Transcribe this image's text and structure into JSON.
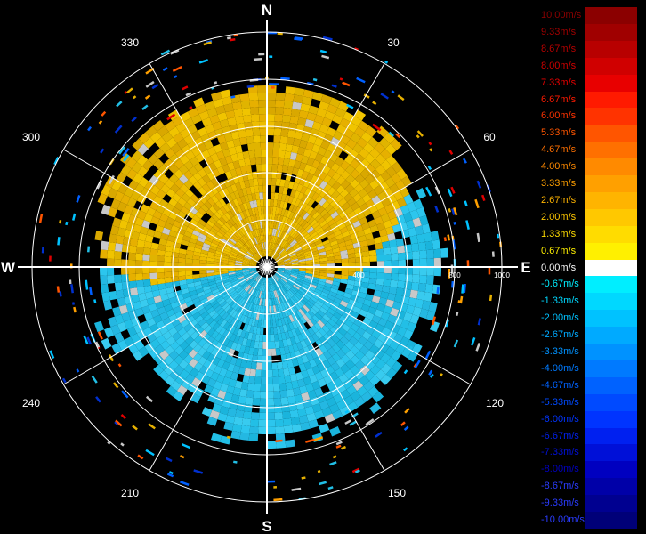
{
  "compass": {
    "north": "N",
    "south": "S",
    "east": "E",
    "west": "W"
  },
  "bearings": [
    "30",
    "60",
    "120",
    "150",
    "210",
    "240",
    "300",
    "330"
  ],
  "range_labels": [
    "400",
    "800",
    "1000"
  ],
  "legend": [
    {
      "label": "10.00m/s",
      "color": "#8b0000"
    },
    {
      "label": "9.33m/s",
      "color": "#a00000"
    },
    {
      "label": "8.67m/s",
      "color": "#b80000"
    },
    {
      "label": "8.00m/s",
      "color": "#d00000"
    },
    {
      "label": "7.33m/s",
      "color": "#e80000"
    },
    {
      "label": "6.67m/s",
      "color": "#ff1a00"
    },
    {
      "label": "6.00m/s",
      "color": "#ff3300"
    },
    {
      "label": "5.33m/s",
      "color": "#ff5500"
    },
    {
      "label": "4.67m/s",
      "color": "#ff7000"
    },
    {
      "label": "4.00m/s",
      "color": "#ff8a00"
    },
    {
      "label": "3.33m/s",
      "color": "#ffa000"
    },
    {
      "label": "2.67m/s",
      "color": "#ffb400"
    },
    {
      "label": "2.00m/s",
      "color": "#ffc800"
    },
    {
      "label": "1.33m/s",
      "color": "#ffdc00"
    },
    {
      "label": "0.67m/s",
      "color": "#fff000"
    },
    {
      "label": "0.00m/s",
      "color": "#ffffff"
    },
    {
      "label": "-0.67m/s",
      "color": "#00eeff"
    },
    {
      "label": "-1.33m/s",
      "color": "#00d8ff"
    },
    {
      "label": "-2.00m/s",
      "color": "#00c2ff"
    },
    {
      "label": "-2.67m/s",
      "color": "#00aaff"
    },
    {
      "label": "-3.33m/s",
      "color": "#0092ff"
    },
    {
      "label": "-4.00m/s",
      "color": "#007aff"
    },
    {
      "label": "-4.67m/s",
      "color": "#0062ff"
    },
    {
      "label": "-5.33m/s",
      "color": "#004aff"
    },
    {
      "label": "-6.00m/s",
      "color": "#0034ff"
    },
    {
      "label": "-6.67m/s",
      "color": "#0020f0"
    },
    {
      "label": "-7.33m/s",
      "color": "#0010d8"
    },
    {
      "label": "-8.00m/s",
      "color": "#0000c0"
    },
    {
      "label": "-8.67m/s",
      "color": "#0000a8"
    },
    {
      "label": "-9.33m/s",
      "color": "#000090"
    },
    {
      "label": "-10.00m/s",
      "color": "#000078"
    }
  ],
  "palette": {
    "approach_main": "#e6b000",
    "recede_main": "#22bfe6",
    "near_zero": "#c8c8c8",
    "grid": "#ffffff",
    "axis": "#ffff00"
  }
}
